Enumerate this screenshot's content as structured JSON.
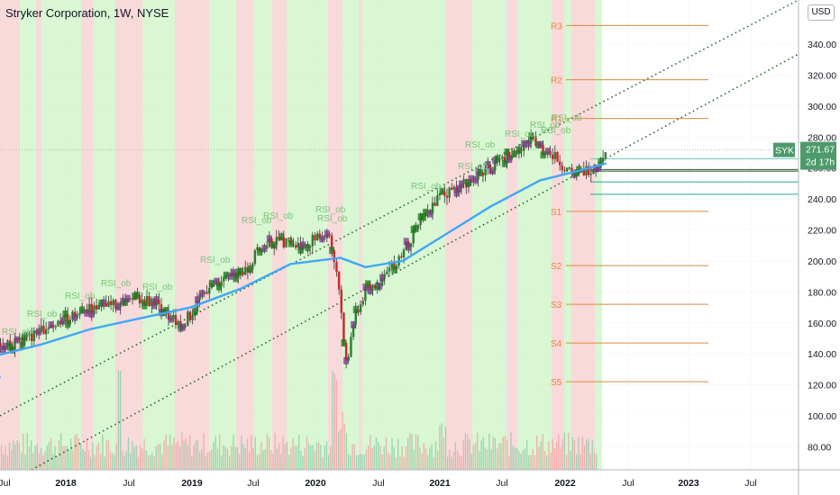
{
  "header": {
    "title": "Stryker Corporation, 1W, NYSE",
    "currency": "USD"
  },
  "price_tag": {
    "symbol": "SYK",
    "price": "271.67",
    "countdown": "2d 17h"
  },
  "colors": {
    "up_band": "#d8f7d2",
    "down_band": "#f9dada",
    "pivot_line": "#e08a3c",
    "pivot_label": "#e08a3c",
    "ma_line": "#42a5f5",
    "trend_line": "#1b5e20",
    "price_tag_bg": "#4e9a6b",
    "rsi_label": "#7cc27c"
  },
  "pivot_labels": [
    "R3",
    "R2",
    "R1",
    "S1",
    "S2",
    "S3",
    "S4",
    "S5"
  ],
  "rsi_label_text": "RSI_ob",
  "chart_data": {
    "type": "candlestick",
    "title": "Stryker Corporation, 1W, NYSE",
    "x_tick_labels": [
      "Jul",
      "2018",
      "Jul",
      "2019",
      "Jul",
      "2020",
      "Jul",
      "2021",
      "Jul",
      "2022",
      "Jul",
      "2023",
      "Jul"
    ],
    "y_tick_labels": [
      "340.00",
      "320.00",
      "300.00",
      "280.00",
      "260.00",
      "240.00",
      "220.00",
      "200.00",
      "180.00",
      "160.00",
      "140.00",
      "120.00",
      "100.00",
      "80.00"
    ],
    "ylim": [
      70,
      355
    ],
    "last_price": 271.67,
    "pivots": [
      {
        "name": "R3",
        "value": 352
      },
      {
        "name": "R2",
        "value": 317
      },
      {
        "name": "R1",
        "value": 292
      },
      {
        "name": "S1",
        "value": 232
      },
      {
        "name": "S2",
        "value": 197
      },
      {
        "name": "S3",
        "value": 172
      },
      {
        "name": "S4",
        "value": 147
      },
      {
        "name": "S5",
        "value": 122
      }
    ],
    "price_path": [
      {
        "t": 2017.4,
        "v": 147
      },
      {
        "t": 2017.55,
        "v": 145
      },
      {
        "t": 2017.7,
        "v": 150
      },
      {
        "t": 2017.85,
        "v": 158
      },
      {
        "t": 2018.0,
        "v": 162
      },
      {
        "t": 2018.15,
        "v": 168
      },
      {
        "t": 2018.3,
        "v": 170
      },
      {
        "t": 2018.45,
        "v": 172
      },
      {
        "t": 2018.6,
        "v": 175
      },
      {
        "t": 2018.75,
        "v": 172
      },
      {
        "t": 2018.9,
        "v": 158
      },
      {
        "t": 2019.0,
        "v": 165
      },
      {
        "t": 2019.15,
        "v": 185
      },
      {
        "t": 2019.3,
        "v": 188
      },
      {
        "t": 2019.45,
        "v": 195
      },
      {
        "t": 2019.55,
        "v": 208
      },
      {
        "t": 2019.7,
        "v": 214
      },
      {
        "t": 2019.85,
        "v": 210
      },
      {
        "t": 2020.0,
        "v": 214
      },
      {
        "t": 2020.1,
        "v": 218
      },
      {
        "t": 2020.18,
        "v": 190
      },
      {
        "t": 2020.25,
        "v": 130
      },
      {
        "t": 2020.3,
        "v": 160
      },
      {
        "t": 2020.4,
        "v": 180
      },
      {
        "t": 2020.55,
        "v": 190
      },
      {
        "t": 2020.7,
        "v": 205
      },
      {
        "t": 2020.85,
        "v": 228
      },
      {
        "t": 2021.0,
        "v": 242
      },
      {
        "t": 2021.15,
        "v": 248
      },
      {
        "t": 2021.3,
        "v": 255
      },
      {
        "t": 2021.45,
        "v": 262
      },
      {
        "t": 2021.6,
        "v": 272
      },
      {
        "t": 2021.75,
        "v": 278
      },
      {
        "t": 2021.85,
        "v": 270
      },
      {
        "t": 2021.95,
        "v": 265
      },
      {
        "t": 2022.05,
        "v": 255
      },
      {
        "t": 2022.15,
        "v": 258
      },
      {
        "t": 2022.25,
        "v": 262
      },
      {
        "t": 2022.33,
        "v": 271.67
      }
    ],
    "moving_average": [
      {
        "t": 2017.4,
        "v": 138
      },
      {
        "t": 2017.8,
        "v": 146
      },
      {
        "t": 2018.2,
        "v": 156
      },
      {
        "t": 2018.6,
        "v": 163
      },
      {
        "t": 2019.0,
        "v": 170
      },
      {
        "t": 2019.4,
        "v": 182
      },
      {
        "t": 2019.8,
        "v": 198
      },
      {
        "t": 2020.2,
        "v": 202
      },
      {
        "t": 2020.4,
        "v": 196
      },
      {
        "t": 2020.7,
        "v": 200
      },
      {
        "t": 2021.0,
        "v": 215
      },
      {
        "t": 2021.4,
        "v": 235
      },
      {
        "t": 2021.8,
        "v": 252
      },
      {
        "t": 2022.1,
        "v": 258
      },
      {
        "t": 2022.33,
        "v": 263
      }
    ]
  }
}
